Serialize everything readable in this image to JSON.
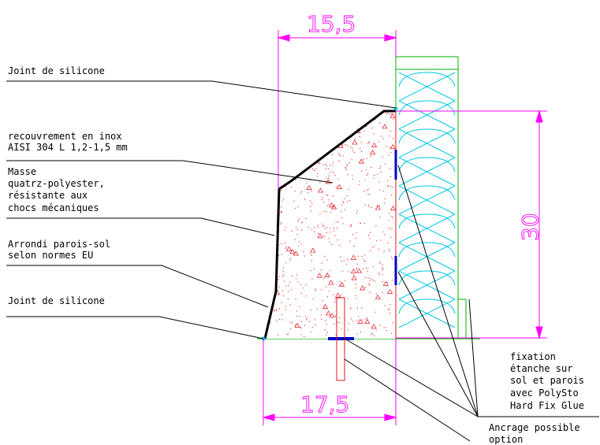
{
  "colors": {
    "dimension": "#ff00ff",
    "outline": "#000000",
    "fill_dots": "#e0141a",
    "insulation": "#00c8e6",
    "insulation_frame": "#00b400",
    "floor_line": "#00b400",
    "fixing_strip": "#0000cc",
    "anchor": "#e0141a"
  },
  "labels": {
    "silicone_top": "Joint de silicone",
    "cover_line1": "recouvrement en inox",
    "cover_line2": "AISI 304 L 1,2-1,5 mm",
    "mass_line1": "Masse",
    "mass_line2": "quatrz-polyester,",
    "mass_line3": "résistante aux",
    "mass_line4": "chocs mécaniques",
    "round_line1": "Arrondi parois-sol",
    "round_line2": "selon normes EU",
    "silicone_bottom": "Joint de silicone",
    "fix_line1": "fixation",
    "fix_line2": "étanche sur",
    "fix_line3": "sol et parois",
    "fix_line4": "avec PolySto",
    "fix_line5": "Hard Fix Glue",
    "anchor_line1": "Ancrage possible",
    "anchor_line2": "option"
  },
  "dimensions": {
    "top_width": "15,5",
    "height": "30",
    "bottom_width": "17,5"
  }
}
